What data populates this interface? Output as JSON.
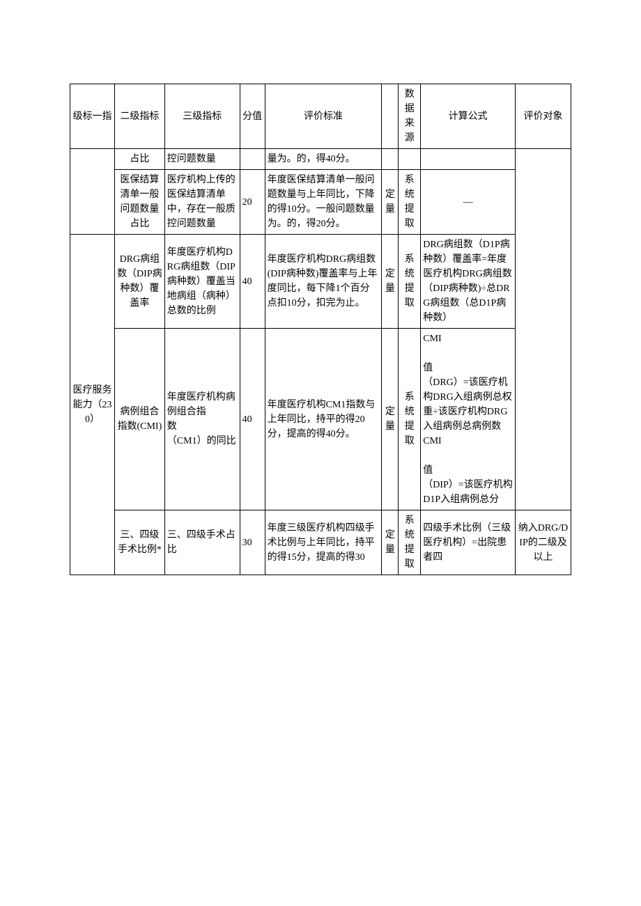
{
  "headers": {
    "level1": "级标一指",
    "level2": "二级指标",
    "level3": "三级指标",
    "score": "分值",
    "criteria": "评价标准",
    "type": "",
    "source": "数据来源",
    "formula": "计算公式",
    "target": "评价对象"
  },
  "rows": [
    {
      "l2": "占比",
      "l3": "控问题数量",
      "score": "",
      "criteria": "量为。的，得40分。",
      "type": "",
      "source": "",
      "formula": "",
      "target": ""
    },
    {
      "l2": "医保结算清单一般问题数量占比",
      "l3": "医疗机构上传的医保结算清单中，存在一般质控问题数量",
      "score": "20",
      "criteria": "年度医保结算清单一般问题数量与上年同比，下降的得10分。一般问题数量为。的，得20分。",
      "type": "定量",
      "source": "系统提取",
      "formula": "—",
      "target": ""
    },
    {
      "l1": "医疗服务能力（230）",
      "l2": "DRG病组数（DIP病种数）覆盖率",
      "l3": "年度医疗机构DRG病组数（DIP病种数）覆盖当地病组（病种）总数的比例",
      "score": "40",
      "criteria": "年度医疗机构DRG病组数(DIP病种数)覆盖率与上年度同比，每下降1个百分点扣10分，扣完为止。",
      "type": "定量",
      "source": "系统提取",
      "formula": "DRG病组数（D1P病种数）覆盖率=年度医疗机构DRG病组数（DIP病种数)÷总DRG病组数（总D1P病种数）",
      "target": ""
    },
    {
      "l2": "病例组合指数(CMI)",
      "l3": "年度医疗机构病例组合指\n数\n（CM1）的同比",
      "score": "40",
      "criteria": "年度医疗机构CM1指数与上年同比，持平的得20分，提高的得40分。",
      "type": "定量",
      "source": "系统提取",
      "formula": "CMI\n\n值\n（DRG）=该医疗机构DRG入组病例总权重÷该医疗机构DRG入组病例总病例数\nCMI\n\n值\n（DIP）=该医疗机构D1P入组病例总分",
      "target": ""
    },
    {
      "l2": "三、四级手术比例*",
      "l3": "三、四级手术占比",
      "score": "30",
      "criteria": "年度三级医疗机构四级手术比例与上年同比，持平的得15分，提高的得30",
      "type": "定量",
      "source": "系统提取",
      "formula": "四级手术比例（三级医疗机构）=出院患者四",
      "target": "纳入DRG/DIP的二级及以上"
    }
  ]
}
